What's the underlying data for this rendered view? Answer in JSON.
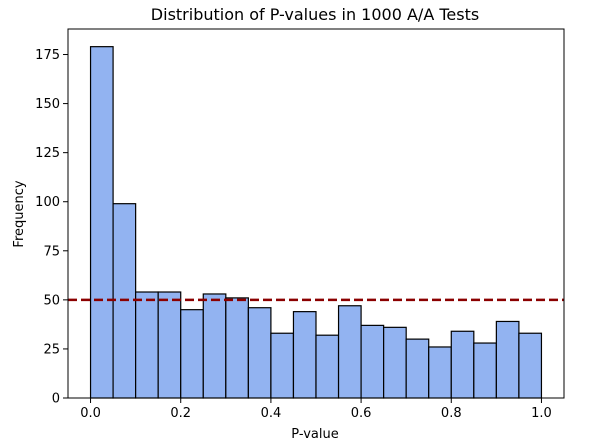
{
  "chart_data": {
    "type": "bar",
    "title": "Distribution of P-values in 1000 A/A Tests",
    "xlabel": "P-value",
    "ylabel": "Frequency",
    "xlim": [
      -0.05,
      1.05
    ],
    "ylim": [
      0,
      188
    ],
    "bin_edges": [
      0.0,
      0.05,
      0.1,
      0.15,
      0.2,
      0.25,
      0.3,
      0.35,
      0.4,
      0.45,
      0.5,
      0.55,
      0.6,
      0.65,
      0.7,
      0.75,
      0.8,
      0.85,
      0.9,
      0.95,
      1.0
    ],
    "values": [
      179,
      99,
      54,
      54,
      45,
      53,
      51,
      46,
      33,
      44,
      32,
      47,
      37,
      36,
      30,
      26,
      34,
      28,
      39,
      33
    ],
    "xticks": [
      0.0,
      0.2,
      0.4,
      0.6,
      0.8,
      1.0
    ],
    "xtick_labels": [
      "0.0",
      "0.2",
      "0.4",
      "0.6",
      "0.8",
      "1.0"
    ],
    "yticks": [
      0,
      25,
      50,
      75,
      100,
      125,
      150,
      175
    ],
    "ytick_labels": [
      "0",
      "25",
      "50",
      "75",
      "100",
      "125",
      "150",
      "175"
    ],
    "reference_line": {
      "y": 50,
      "style": "dashed",
      "color": "#8b0000"
    },
    "bar_color": "#92b3f1",
    "grid": false
  }
}
